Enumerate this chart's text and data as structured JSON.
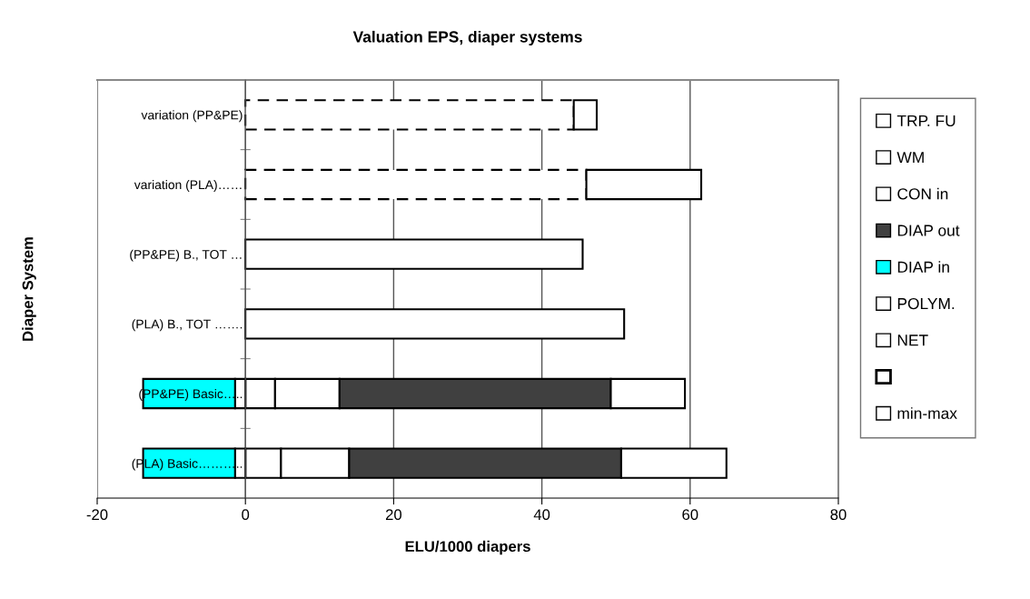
{
  "chart_data": {
    "type": "bar",
    "orientation": "horizontal",
    "stacked": true,
    "title": "Valuation EPS, diaper systems",
    "xlabel": "ELU/1000 diapers",
    "ylabel": "Diaper System",
    "categories": [
      "variation (PP&PE)",
      "variation (PLA)……",
      "(PP&PE) B., TOT …",
      "(PLA) B., TOT …….",
      "(PP&PE) Basic…..",
      "(PLA) Basic……….."
    ],
    "series": [
      {
        "name": "TRP. FU",
        "color": "#ffffff",
        "values": [
          null,
          null,
          null,
          null,
          4.0,
          4.8
        ]
      },
      {
        "name": "WM",
        "color": "#ffffff",
        "values": [
          null,
          null,
          null,
          null,
          8.7,
          9.2
        ]
      },
      {
        "name": "CON in",
        "color": "#ffffff",
        "values": [
          null,
          null,
          null,
          null,
          -1.4,
          -1.4
        ]
      },
      {
        "name": "DIAP out",
        "color": "#404040",
        "values": [
          null,
          null,
          null,
          null,
          36.6,
          36.7
        ]
      },
      {
        "name": "DIAP in",
        "color": "#00ffff",
        "values": [
          null,
          null,
          null,
          null,
          -12.4,
          -12.4
        ]
      },
      {
        "name": "POLYM.",
        "color": "#ffffff",
        "values": [
          null,
          null,
          null,
          null,
          10.0,
          14.2
        ]
      },
      {
        "name": "NET",
        "color": "#ffffff",
        "values": [
          null,
          null,
          45.5,
          51.1,
          null,
          null
        ]
      },
      {
        "color": "#ffffff",
        "line_style": "dashed",
        "values": [
          44.3,
          46.0,
          null,
          null,
          null,
          null
        ]
      },
      {
        "name": "min-max",
        "color": "#ffffff",
        "values": [
          3.1,
          15.5,
          null,
          null,
          null,
          null
        ]
      }
    ],
    "xlim": [
      -20,
      80
    ],
    "xticks": [
      -20,
      0,
      20,
      40,
      60,
      80
    ],
    "grid": "x",
    "legend": "right"
  }
}
